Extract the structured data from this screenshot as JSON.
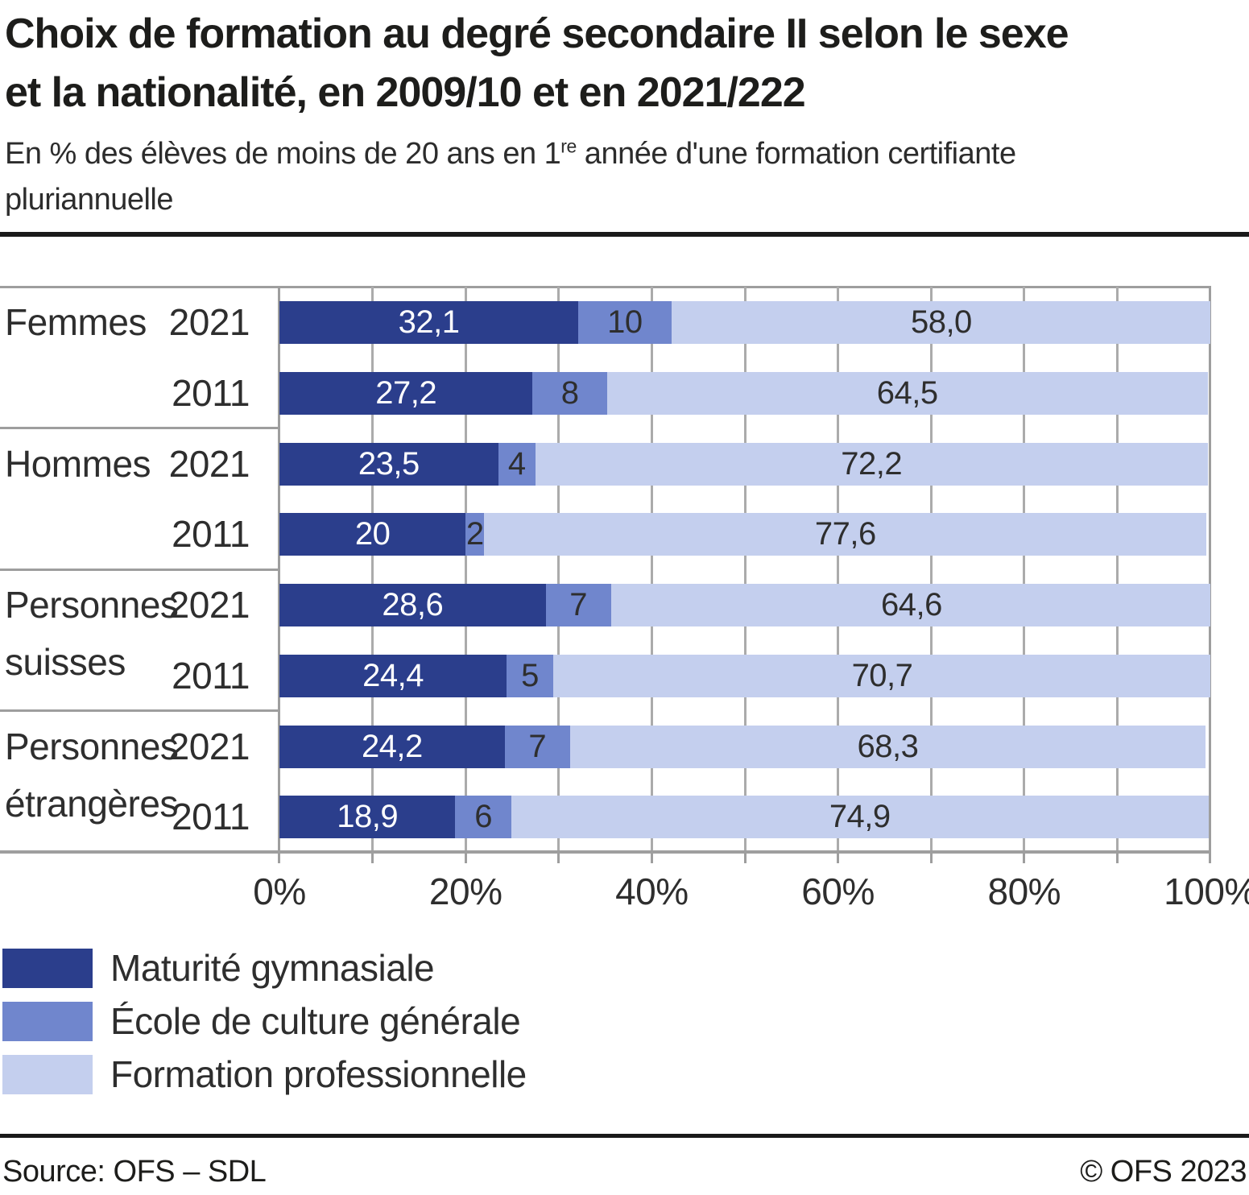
{
  "title": {
    "line1": "Choix de formation au degré secondaire II selon le sexe",
    "line2": "et la nationalité, en 2009/10 et en 2021/222"
  },
  "subtitle": {
    "line1_pre": "En % des élèves de moins de 20 ans en 1",
    "line1_sup": "re",
    "line1_post": " année d'une formation certifiante",
    "line2": "pluriannuelle"
  },
  "chart_data": {
    "type": "bar",
    "orientation": "horizontal",
    "stacked": true,
    "unit": "%",
    "xlim": [
      0,
      100
    ],
    "grid": "vertical every 10%",
    "x_tick_labels": [
      "0%",
      "20%",
      "40%",
      "60%",
      "80%",
      "100%"
    ],
    "series_names": [
      "Maturité gymnasiale",
      "École de culture générale",
      "Formation professionnelle"
    ],
    "series_colors": [
      "#2b3e8c",
      "#7086cd",
      "#c4cfee"
    ],
    "groups": [
      {
        "label_lines": [
          "Femmes"
        ],
        "rows": [
          {
            "year": "2021",
            "values": [
              32.1,
              10,
              58.0
            ],
            "value_labels": [
              "32,1",
              "10",
              "58,0"
            ]
          },
          {
            "year": "2011",
            "values": [
              27.2,
              8,
              64.5
            ],
            "value_labels": [
              "27,2",
              "8",
              "64,5"
            ]
          }
        ]
      },
      {
        "label_lines": [
          "Hommes"
        ],
        "rows": [
          {
            "year": "2021",
            "values": [
              23.5,
              4,
              72.2
            ],
            "value_labels": [
              "23,5",
              "4",
              "72,2"
            ]
          },
          {
            "year": "2011",
            "values": [
              20,
              2,
              77.6
            ],
            "value_labels": [
              "20",
              "2",
              "77,6"
            ]
          }
        ]
      },
      {
        "label_lines": [
          "Personnes",
          "suisses"
        ],
        "rows": [
          {
            "year": "2021",
            "values": [
              28.6,
              7,
              64.6
            ],
            "value_labels": [
              "28,6",
              "7",
              "64,6"
            ]
          },
          {
            "year": "2011",
            "values": [
              24.4,
              5,
              70.7
            ],
            "value_labels": [
              "24,4",
              "5",
              "70,7"
            ]
          }
        ]
      },
      {
        "label_lines": [
          "Personnes",
          "étrangères"
        ],
        "rows": [
          {
            "year": "2021",
            "values": [
              24.2,
              7,
              68.3
            ],
            "value_labels": [
              "24,2",
              "7",
              "68,3"
            ]
          },
          {
            "year": "2011",
            "values": [
              18.9,
              6,
              74.9
            ],
            "value_labels": [
              "18,9",
              "6",
              "74,9"
            ]
          }
        ]
      }
    ]
  },
  "legend": {
    "items": [
      {
        "label": "Maturité gymnasiale",
        "color": "#2b3e8c"
      },
      {
        "label": "École de culture générale",
        "color": "#7086cd"
      },
      {
        "label": "Formation professionnelle",
        "color": "#c4cfee"
      }
    ]
  },
  "footer": {
    "source": "Source: OFS – SDL",
    "copyright": "© OFS 2023"
  }
}
